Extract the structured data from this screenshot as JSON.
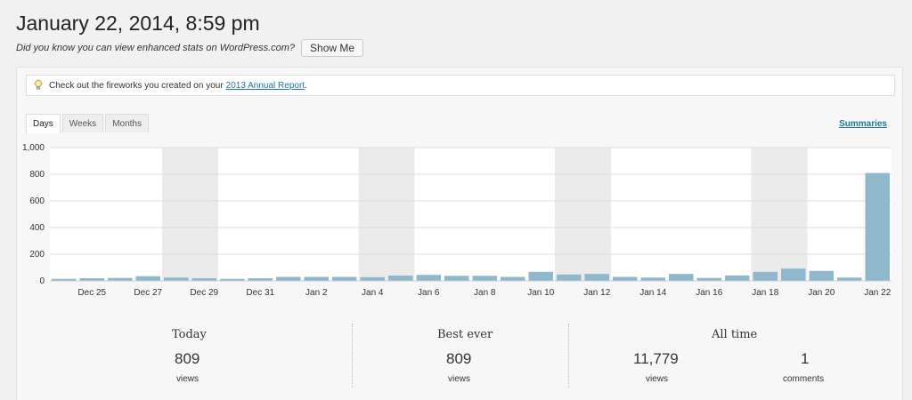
{
  "header": {
    "title": "January 22, 2014, 8:59 pm",
    "enhanced_text": "Did you know you can view enhanced stats on WordPress.com?",
    "show_me_label": "Show Me"
  },
  "notice": {
    "text": "Check out the fireworks you created on your",
    "link": "2013 Annual Report",
    "suffix": "."
  },
  "tabs": [
    {
      "label": "Days",
      "active": true
    },
    {
      "label": "Weeks",
      "active": false
    },
    {
      "label": "Months",
      "active": false
    }
  ],
  "summaries_label": "Summaries",
  "chart_data": {
    "type": "bar",
    "y_ticks": [
      "0",
      "200",
      "400",
      "600",
      "800",
      "1,000"
    ],
    "ylim": [
      0,
      1000
    ],
    "categories": [
      "Dec 24",
      "Dec 25",
      "Dec 26",
      "Dec 27",
      "Dec 28",
      "Dec 29",
      "Dec 30",
      "Dec 31",
      "Jan 1",
      "Jan 2",
      "Jan 3",
      "Jan 4",
      "Jan 5",
      "Jan 6",
      "Jan 7",
      "Jan 8",
      "Jan 9",
      "Jan 10",
      "Jan 11",
      "Jan 12",
      "Jan 13",
      "Jan 14",
      "Jan 15",
      "Jan 16",
      "Jan 17",
      "Jan 18",
      "Jan 19",
      "Jan 20",
      "Jan 21",
      "Jan 22"
    ],
    "x_labels": [
      "Dec 25",
      "Dec 27",
      "Dec 29",
      "Dec 31",
      "Jan 2",
      "Jan 4",
      "Jan 6",
      "Jan 8",
      "Jan 10",
      "Jan 12",
      "Jan 14",
      "Jan 16",
      "Jan 18",
      "Jan 20",
      "Jan 22"
    ],
    "values": [
      15,
      20,
      22,
      35,
      25,
      20,
      15,
      20,
      30,
      30,
      30,
      28,
      40,
      45,
      38,
      38,
      30,
      68,
      48,
      52,
      30,
      25,
      52,
      22,
      40,
      68,
      92,
      75,
      25,
      809
    ],
    "weekend_bands": [
      [
        "Dec 28",
        "Dec 29"
      ],
      [
        "Jan 4",
        "Jan 5"
      ],
      [
        "Jan 11",
        "Jan 12"
      ],
      [
        "Jan 18",
        "Jan 19"
      ]
    ],
    "bar_color": "#8fb8cd",
    "weekend_color": "#ebebeb"
  },
  "stats": {
    "today": {
      "heading": "Today",
      "value": "809",
      "unit": "views"
    },
    "best": {
      "heading": "Best ever",
      "value": "809",
      "unit": "views"
    },
    "all_time": {
      "heading": "All time",
      "views": "11,779",
      "views_unit": "views",
      "comments": "1",
      "comments_unit": "comments"
    }
  }
}
